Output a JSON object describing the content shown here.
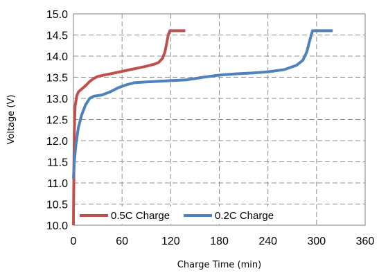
{
  "chart_data": {
    "type": "line",
    "title": "",
    "xlabel": "Charge Time (min)",
    "ylabel": "Voltage (V)",
    "xlim": [
      0,
      360
    ],
    "ylim": [
      10.0,
      15.0
    ],
    "x_ticks": [
      "0",
      "60",
      "120",
      "180",
      "240",
      "300",
      "360"
    ],
    "y_ticks": [
      "10.0",
      "10.5",
      "11.0",
      "11.5",
      "12.0",
      "12.5",
      "13.0",
      "13.5",
      "14.0",
      "14.5",
      "15.0"
    ],
    "grid": true,
    "grid_style": "dashed",
    "legend_position": "bottom-left",
    "series": [
      {
        "name": "0.5C Charge",
        "color": "#c0504d",
        "points": [
          [
            0,
            10.0
          ],
          [
            0.5,
            11.2
          ],
          [
            1,
            12.2
          ],
          [
            2,
            12.8
          ],
          [
            4,
            13.05
          ],
          [
            6,
            13.15
          ],
          [
            10,
            13.22
          ],
          [
            15,
            13.3
          ],
          [
            20,
            13.4
          ],
          [
            25,
            13.47
          ],
          [
            30,
            13.52
          ],
          [
            40,
            13.56
          ],
          [
            50,
            13.6
          ],
          [
            60,
            13.64
          ],
          [
            70,
            13.68
          ],
          [
            80,
            13.72
          ],
          [
            90,
            13.76
          ],
          [
            100,
            13.81
          ],
          [
            105,
            13.85
          ],
          [
            110,
            13.95
          ],
          [
            113,
            14.1
          ],
          [
            115,
            14.3
          ],
          [
            117,
            14.5
          ],
          [
            119,
            14.6
          ],
          [
            122,
            14.6
          ],
          [
            130,
            14.6
          ],
          [
            138,
            14.6
          ]
        ]
      },
      {
        "name": "0.2C Charge",
        "color": "#4f81bd",
        "points": [
          [
            0,
            11.1
          ],
          [
            1,
            11.5
          ],
          [
            3,
            11.9
          ],
          [
            6,
            12.3
          ],
          [
            10,
            12.6
          ],
          [
            15,
            12.85
          ],
          [
            20,
            13.0
          ],
          [
            25,
            13.05
          ],
          [
            35,
            13.08
          ],
          [
            45,
            13.15
          ],
          [
            55,
            13.25
          ],
          [
            65,
            13.32
          ],
          [
            75,
            13.37
          ],
          [
            90,
            13.39
          ],
          [
            100,
            13.4
          ],
          [
            120,
            13.42
          ],
          [
            140,
            13.44
          ],
          [
            160,
            13.5
          ],
          [
            180,
            13.55
          ],
          [
            200,
            13.58
          ],
          [
            220,
            13.6
          ],
          [
            240,
            13.63
          ],
          [
            260,
            13.68
          ],
          [
            275,
            13.78
          ],
          [
            283,
            13.9
          ],
          [
            288,
            14.1
          ],
          [
            292,
            14.4
          ],
          [
            295,
            14.6
          ],
          [
            300,
            14.6
          ],
          [
            310,
            14.6
          ],
          [
            320,
            14.6
          ]
        ]
      }
    ]
  }
}
